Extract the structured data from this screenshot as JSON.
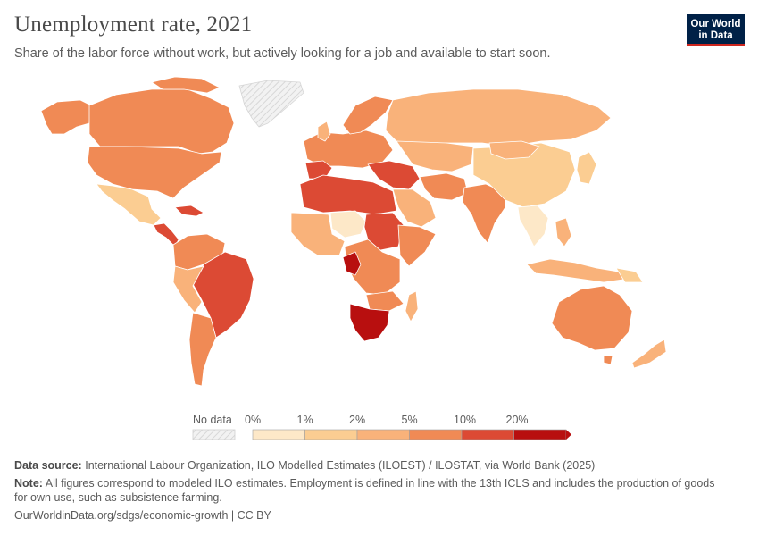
{
  "header": {
    "title": "Unemployment rate, 2021",
    "subtitle": "Share of the labor force without work, but actively looking for a job and available to start soon."
  },
  "logo": {
    "line1": "Our World",
    "line2": "in Data"
  },
  "legend": {
    "no_data_label": "No data",
    "bins": [
      {
        "label": "0%",
        "color": "#fde8c8"
      },
      {
        "label": "1%",
        "color": "#fbcd92"
      },
      {
        "label": "2%",
        "color": "#f9b27a"
      },
      {
        "label": "5%",
        "color": "#f08a55"
      },
      {
        "label": "10%",
        "color": "#dc4a34"
      },
      {
        "label": "20%",
        "color": "#b80f0f"
      }
    ]
  },
  "colors": {
    "ocean": "#ffffff",
    "border": "#ffffff",
    "no_data": "#efefef"
  },
  "footer": {
    "source_label": "Data source:",
    "source_text": "International Labour Organization, ILO Modelled Estimates (ILOEST) / ILOSTAT, via World Bank (2025)",
    "note_label": "Note:",
    "note_text": "All figures correspond to modeled ILO estimates. Employment is defined in line with the 13th ICLS and includes the production of goods for own use, such as subsistence farming.",
    "url": "OurWorldinData.org/sdgs/economic-growth | CC BY"
  }
}
